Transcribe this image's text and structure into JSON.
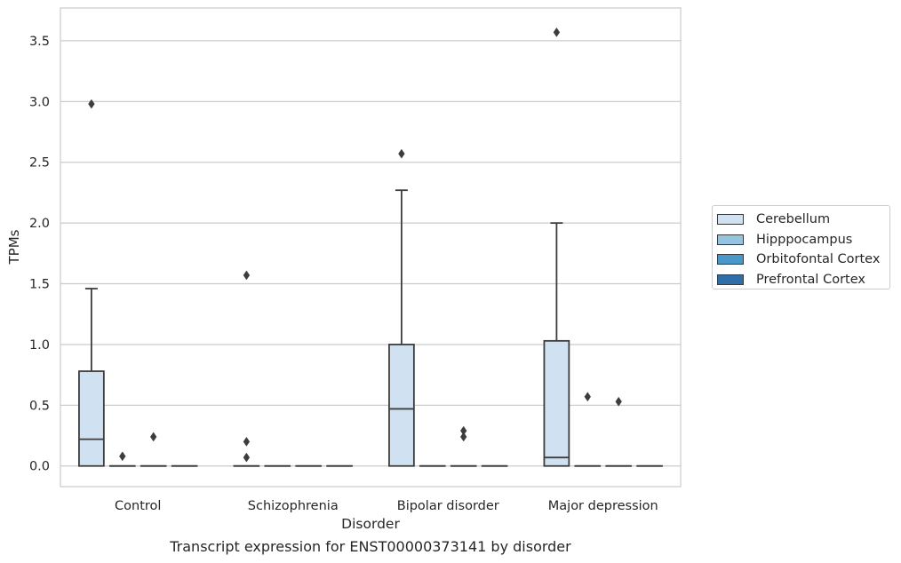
{
  "caption": "Transcript expression for ENST00000373141 by disorder",
  "chart_data": {
    "type": "box",
    "xlabel": "Disorder",
    "ylabel": "TPMs",
    "ylim": [
      -0.17,
      3.77
    ],
    "yticks": [
      0.0,
      0.5,
      1.0,
      1.5,
      2.0,
      2.5,
      3.0,
      3.5
    ],
    "ytick_labels": [
      "0.0",
      "0.5",
      "1.0",
      "1.5",
      "2.0",
      "2.5",
      "3.0",
      "3.5"
    ],
    "categories": [
      "Control",
      "Schizophrenia",
      "Bipolar disorder",
      "Major depression"
    ],
    "grid": true,
    "legend_position": "right",
    "series": [
      {
        "name": "Cerebellum",
        "color": "#d0e1f2",
        "boxes": [
          {
            "q1": 0.0,
            "median": 0.22,
            "q3": 0.78,
            "whisker_low": 0.0,
            "whisker_high": 1.46,
            "outliers": [
              2.98
            ]
          },
          {
            "q1": 0.0,
            "median": 0.0,
            "q3": 0.0,
            "whisker_low": 0.0,
            "whisker_high": 0.0,
            "outliers": [
              0.07,
              0.2,
              1.57
            ]
          },
          {
            "q1": 0.0,
            "median": 0.47,
            "q3": 1.0,
            "whisker_low": 0.0,
            "whisker_high": 2.27,
            "outliers": [
              2.57
            ]
          },
          {
            "q1": 0.0,
            "median": 0.07,
            "q3": 1.03,
            "whisker_low": 0.0,
            "whisker_high": 2.0,
            "outliers": [
              3.57
            ]
          }
        ]
      },
      {
        "name": "Hipppocampus",
        "color": "#94c4df",
        "boxes": [
          {
            "q1": 0.0,
            "median": 0.0,
            "q3": 0.0,
            "whisker_low": 0.0,
            "whisker_high": 0.0,
            "outliers": [
              0.08
            ]
          },
          {
            "q1": 0.0,
            "median": 0.0,
            "q3": 0.0,
            "whisker_low": 0.0,
            "whisker_high": 0.0,
            "outliers": []
          },
          {
            "q1": 0.0,
            "median": 0.0,
            "q3": 0.0,
            "whisker_low": 0.0,
            "whisker_high": 0.0,
            "outliers": []
          },
          {
            "q1": 0.0,
            "median": 0.0,
            "q3": 0.0,
            "whisker_low": 0.0,
            "whisker_high": 0.0,
            "outliers": [
              0.57
            ]
          }
        ]
      },
      {
        "name": "Orbitofontal Cortex",
        "color": "#4a98c9",
        "boxes": [
          {
            "q1": 0.0,
            "median": 0.0,
            "q3": 0.0,
            "whisker_low": 0.0,
            "whisker_high": 0.0,
            "outliers": [
              0.24
            ]
          },
          {
            "q1": 0.0,
            "median": 0.0,
            "q3": 0.0,
            "whisker_low": 0.0,
            "whisker_high": 0.0,
            "outliers": []
          },
          {
            "q1": 0.0,
            "median": 0.0,
            "q3": 0.0,
            "whisker_low": 0.0,
            "whisker_high": 0.0,
            "outliers": [
              0.24,
              0.29
            ]
          },
          {
            "q1": 0.0,
            "median": 0.0,
            "q3": 0.0,
            "whisker_low": 0.0,
            "whisker_high": 0.0,
            "outliers": [
              0.53
            ]
          }
        ]
      },
      {
        "name": "Prefrontal Cortex",
        "color": "#2e6faa",
        "boxes": [
          {
            "q1": 0.0,
            "median": 0.0,
            "q3": 0.0,
            "whisker_low": 0.0,
            "whisker_high": 0.0,
            "outliers": []
          },
          {
            "q1": 0.0,
            "median": 0.0,
            "q3": 0.0,
            "whisker_low": 0.0,
            "whisker_high": 0.0,
            "outliers": []
          },
          {
            "q1": 0.0,
            "median": 0.0,
            "q3": 0.0,
            "whisker_low": 0.0,
            "whisker_high": 0.0,
            "outliers": []
          },
          {
            "q1": 0.0,
            "median": 0.0,
            "q3": 0.0,
            "whisker_low": 0.0,
            "whisker_high": 0.0,
            "outliers": []
          }
        ]
      }
    ]
  }
}
